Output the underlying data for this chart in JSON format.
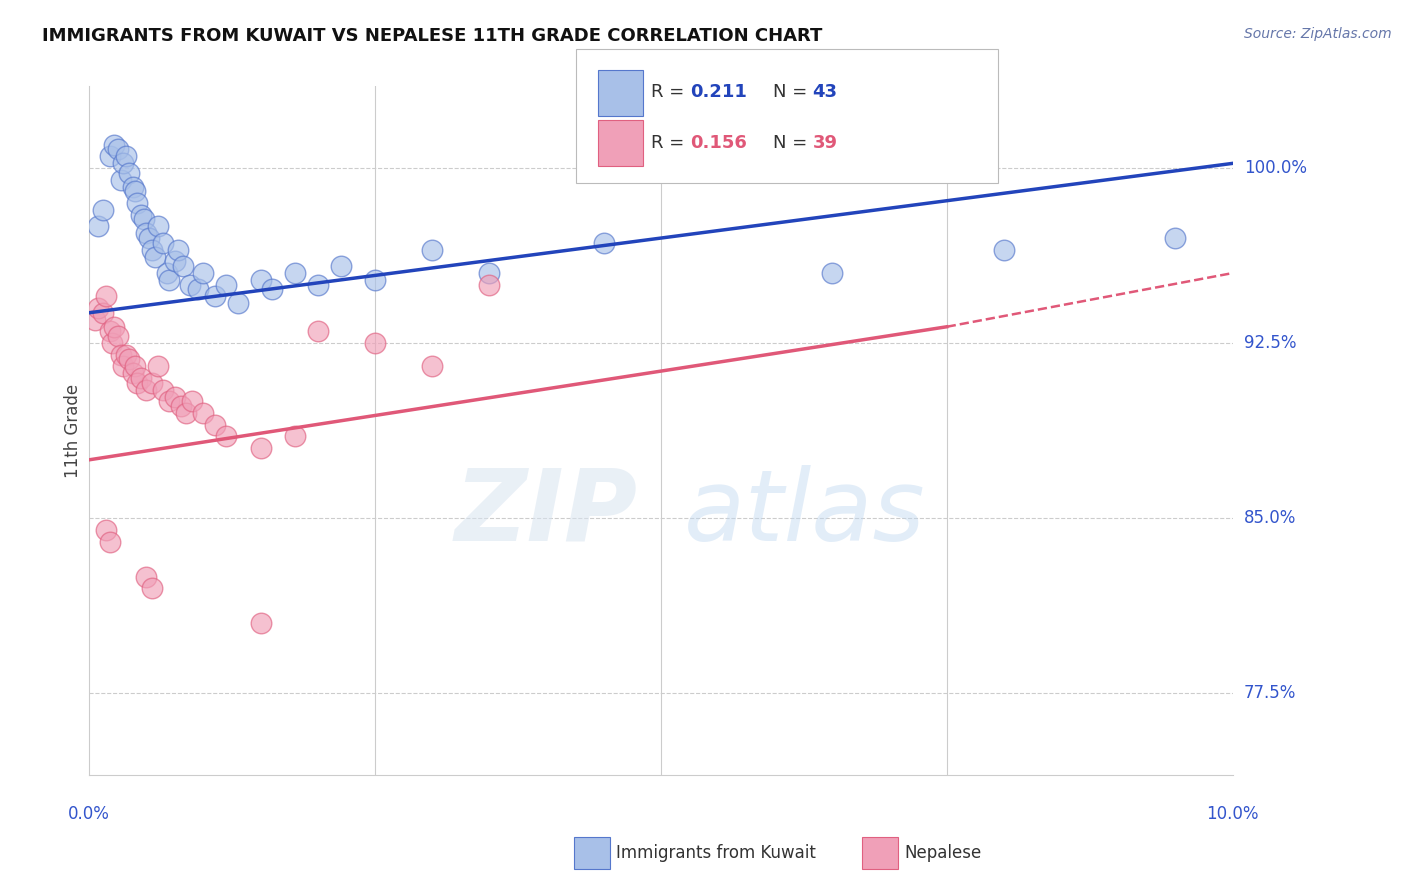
{
  "title": "IMMIGRANTS FROM KUWAIT VS NEPALESE 11TH GRADE CORRELATION CHART",
  "source": "Source: ZipAtlas.com",
  "ylabel": "11th Grade",
  "xlim": [
    0.0,
    10.0
  ],
  "ylim": [
    74.0,
    103.5
  ],
  "yticks": [
    77.5,
    85.0,
    92.5,
    100.0
  ],
  "ytick_labels": [
    "77.5%",
    "85.0%",
    "92.5%",
    "100.0%"
  ],
  "blue_R": 0.211,
  "blue_N": 43,
  "pink_R": 0.156,
  "pink_N": 39,
  "blue_color": "#A8C0E8",
  "pink_color": "#F0A0B8",
  "blue_edge_color": "#5577CC",
  "pink_edge_color": "#E06080",
  "blue_line_color": "#2244BB",
  "pink_line_color": "#E05878",
  "watermark_zip": "ZIP",
  "watermark_atlas": "atlas",
  "blue_scatter_x": [
    0.08,
    0.12,
    0.18,
    0.22,
    0.25,
    0.28,
    0.3,
    0.32,
    0.35,
    0.38,
    0.4,
    0.42,
    0.45,
    0.48,
    0.5,
    0.52,
    0.55,
    0.58,
    0.6,
    0.65,
    0.68,
    0.7,
    0.75,
    0.78,
    0.82,
    0.88,
    0.95,
    1.0,
    1.1,
    1.2,
    1.3,
    1.5,
    1.6,
    1.8,
    2.0,
    2.2,
    2.5,
    3.0,
    3.5,
    4.5,
    6.5,
    8.0,
    9.5
  ],
  "blue_scatter_y": [
    97.5,
    98.2,
    100.5,
    101.0,
    100.8,
    99.5,
    100.2,
    100.5,
    99.8,
    99.2,
    99.0,
    98.5,
    98.0,
    97.8,
    97.2,
    97.0,
    96.5,
    96.2,
    97.5,
    96.8,
    95.5,
    95.2,
    96.0,
    96.5,
    95.8,
    95.0,
    94.8,
    95.5,
    94.5,
    95.0,
    94.2,
    95.2,
    94.8,
    95.5,
    95.0,
    95.8,
    95.2,
    96.5,
    95.5,
    96.8,
    95.5,
    96.5,
    97.0
  ],
  "pink_scatter_x": [
    0.05,
    0.08,
    0.12,
    0.15,
    0.18,
    0.2,
    0.22,
    0.25,
    0.28,
    0.3,
    0.32,
    0.35,
    0.38,
    0.4,
    0.42,
    0.45,
    0.5,
    0.55,
    0.6,
    0.65,
    0.7,
    0.75,
    0.8,
    0.85,
    0.9,
    1.0,
    1.1,
    1.2,
    1.5,
    1.8,
    2.0,
    2.5,
    3.0,
    3.5,
    0.15,
    0.18,
    0.5,
    0.55,
    1.5
  ],
  "pink_scatter_y": [
    93.5,
    94.0,
    93.8,
    94.5,
    93.0,
    92.5,
    93.2,
    92.8,
    92.0,
    91.5,
    92.0,
    91.8,
    91.2,
    91.5,
    90.8,
    91.0,
    90.5,
    90.8,
    91.5,
    90.5,
    90.0,
    90.2,
    89.8,
    89.5,
    90.0,
    89.5,
    89.0,
    88.5,
    88.0,
    88.5,
    93.0,
    92.5,
    91.5,
    95.0,
    84.5,
    84.0,
    82.5,
    82.0,
    80.5
  ],
  "blue_line_x0": 0.0,
  "blue_line_x1": 10.0,
  "blue_line_y0": 93.8,
  "blue_line_y1": 100.2,
  "pink_line_x0": 0.0,
  "pink_line_xbreak": 7.5,
  "pink_line_x1": 10.0,
  "pink_line_y0": 87.5,
  "pink_line_ybreak": 93.2,
  "pink_line_y1": 95.5
}
